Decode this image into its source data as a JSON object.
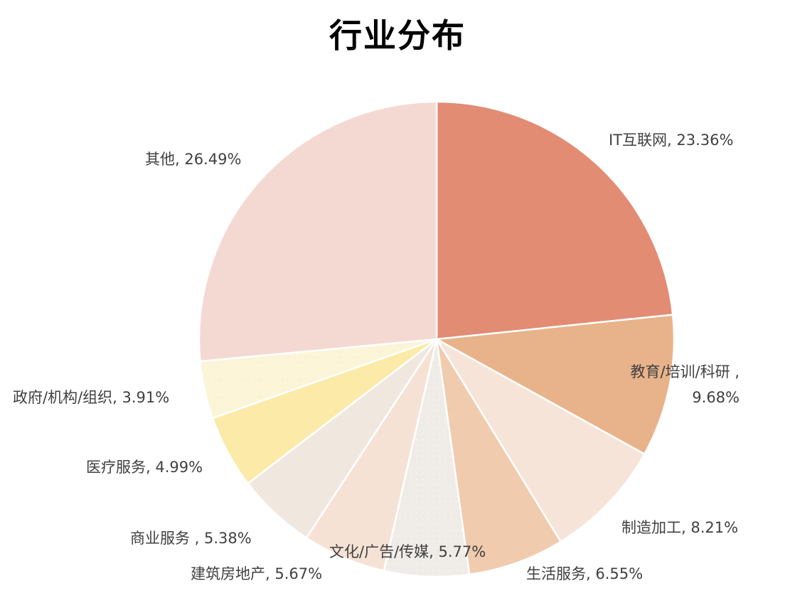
{
  "chart_data": {
    "type": "pie",
    "title": "行业分布",
    "start_angle_deg": 0,
    "direction": "clockwise",
    "categories": [
      "IT互联网",
      "教育/培训/科研",
      "制造加工",
      "生活服务",
      "文化/广告/传媒",
      "建筑房地产",
      "商业服务",
      "医疗服务",
      "政府/机构/组织",
      "其他"
    ],
    "values": [
      23.36,
      9.68,
      8.21,
      6.55,
      5.77,
      5.67,
      5.38,
      4.99,
      3.91,
      26.49
    ],
    "colors": [
      "#E28C74",
      "#E8B38A",
      "#F6E4D8",
      "#F0CBAE",
      "#EFEBE6",
      "#F6E2D5",
      "#F0E7DF",
      "#FBEAA8",
      "#FBF4D6",
      "#F4D9D3"
    ],
    "labels": [
      {
        "name": "IT互联网",
        "text": "IT互联网, 23.36%"
      },
      {
        "name": "教育/培训/科研",
        "text": "教育/培训/科研 ,",
        "text2": "9.68%"
      },
      {
        "name": "制造加工",
        "text": "制造加工, 8.21%"
      },
      {
        "name": "生活服务",
        "text": "生活服务, 6.55%"
      },
      {
        "name": "文化/广告/传媒",
        "text": "文化/广告/传媒, 5.77%"
      },
      {
        "name": "建筑房地产",
        "text": "建筑房地产, 5.67%"
      },
      {
        "name": "商业服务",
        "text": "商业服务 , 5.38%"
      },
      {
        "name": "医疗服务",
        "text": "医疗服务, 4.99%"
      },
      {
        "name": "政府/机构/组织",
        "text": "政府/机构/组织, 3.91%"
      },
      {
        "name": "其他",
        "text": "其他, 26.49%"
      }
    ],
    "legend": "none",
    "data_labels": "category, percent"
  }
}
